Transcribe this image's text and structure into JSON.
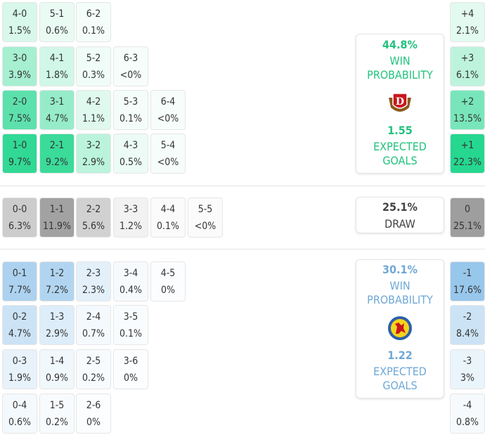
{
  "colors": {
    "home": "#1fd68c",
    "draw": "#9e9e9e",
    "away": "#8fc2ea",
    "home_text": "#22c27e",
    "away_text": "#6fa8d6",
    "draw_text": "#444444"
  },
  "home": {
    "rows": [
      [
        {
          "score": "4-0",
          "pct": "1.5%"
        },
        {
          "score": "5-1",
          "pct": "0.6%"
        },
        {
          "score": "6-2",
          "pct": "0.1%"
        }
      ],
      [
        {
          "score": "3-0",
          "pct": "3.9%"
        },
        {
          "score": "4-1",
          "pct": "1.8%"
        },
        {
          "score": "5-2",
          "pct": "0.3%"
        },
        {
          "score": "6-3",
          "pct": "<0%"
        }
      ],
      [
        {
          "score": "2-0",
          "pct": "7.5%"
        },
        {
          "score": "3-1",
          "pct": "4.7%"
        },
        {
          "score": "4-2",
          "pct": "1.1%"
        },
        {
          "score": "5-3",
          "pct": "0.1%"
        },
        {
          "score": "6-4",
          "pct": "<0%"
        }
      ],
      [
        {
          "score": "1-0",
          "pct": "9.7%"
        },
        {
          "score": "2-1",
          "pct": "9.2%"
        },
        {
          "score": "3-2",
          "pct": "2.9%"
        },
        {
          "score": "4-3",
          "pct": "0.5%"
        },
        {
          "score": "5-4",
          "pct": "<0%"
        }
      ]
    ],
    "margins": [
      {
        "score": "+4",
        "pct": "2.1%"
      },
      {
        "score": "+3",
        "pct": "6.1%"
      },
      {
        "score": "+2",
        "pct": "13.5%"
      },
      {
        "score": "+1",
        "pct": "22.3%"
      }
    ],
    "win_pct": "44.8%",
    "win_label_1": "WIN",
    "win_label_2": "PROBABILITY",
    "xg": "1.55",
    "xg_label_1": "EXPECTED",
    "xg_label_2": "GOALS",
    "logo": "dynamo-dresden-crest"
  },
  "draw": {
    "row": [
      {
        "score": "0-0",
        "pct": "6.3%"
      },
      {
        "score": "1-1",
        "pct": "11.9%"
      },
      {
        "score": "2-2",
        "pct": "5.6%"
      },
      {
        "score": "3-3",
        "pct": "1.2%"
      },
      {
        "score": "4-4",
        "pct": "0.1%"
      },
      {
        "score": "5-5",
        "pct": "<0%"
      }
    ],
    "margin": {
      "score": "0",
      "pct": "25.1%"
    },
    "pct": "25.1%",
    "label": "DRAW"
  },
  "away": {
    "rows": [
      [
        {
          "score": "0-1",
          "pct": "7.7%"
        },
        {
          "score": "1-2",
          "pct": "7.2%"
        },
        {
          "score": "2-3",
          "pct": "2.3%"
        },
        {
          "score": "3-4",
          "pct": "0.4%"
        },
        {
          "score": "4-5",
          "pct": "0%"
        }
      ],
      [
        {
          "score": "0-2",
          "pct": "4.7%"
        },
        {
          "score": "1-3",
          "pct": "2.9%"
        },
        {
          "score": "2-4",
          "pct": "0.7%"
        },
        {
          "score": "3-5",
          "pct": "0.1%"
        }
      ],
      [
        {
          "score": "0-3",
          "pct": "1.9%"
        },
        {
          "score": "1-4",
          "pct": "0.9%"
        },
        {
          "score": "2-5",
          "pct": "0.2%"
        },
        {
          "score": "3-6",
          "pct": "0%"
        }
      ],
      [
        {
          "score": "0-4",
          "pct": "0.6%"
        },
        {
          "score": "1-5",
          "pct": "0.2%"
        },
        {
          "score": "2-6",
          "pct": "0%"
        }
      ]
    ],
    "margins": [
      {
        "score": "-1",
        "pct": "17.6%"
      },
      {
        "score": "-2",
        "pct": "8.4%"
      },
      {
        "score": "-3",
        "pct": "3%"
      },
      {
        "score": "-4",
        "pct": "0.8%"
      }
    ],
    "win_pct": "30.1%",
    "win_label_1": "WIN",
    "win_label_2": "PROBABILITY",
    "xg": "1.22",
    "xg_label_1": "EXPECTED",
    "xg_label_2": "GOALS",
    "logo": "eintracht-braunschweig-crest"
  }
}
